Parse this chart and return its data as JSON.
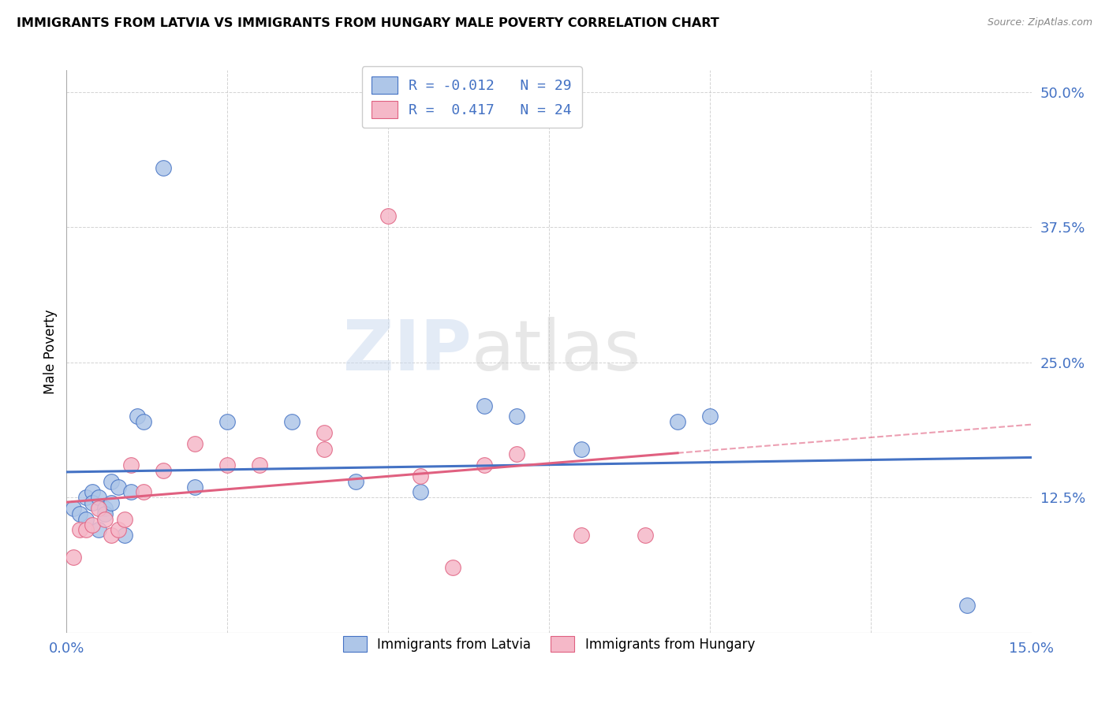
{
  "title": "IMMIGRANTS FROM LATVIA VS IMMIGRANTS FROM HUNGARY MALE POVERTY CORRELATION CHART",
  "source": "Source: ZipAtlas.com",
  "ylabel_label": "Male Poverty",
  "xlim": [
    0.0,
    0.15
  ],
  "ylim": [
    0.0,
    0.52
  ],
  "xticks": [
    0.0,
    0.025,
    0.05,
    0.075,
    0.1,
    0.125,
    0.15
  ],
  "xtick_labels": [
    "0.0%",
    "",
    "",
    "",
    "",
    "",
    "15.0%"
  ],
  "yticks": [
    0.0,
    0.125,
    0.25,
    0.375,
    0.5
  ],
  "ytick_labels": [
    "",
    "12.5%",
    "25.0%",
    "37.5%",
    "50.0%"
  ],
  "r_latvia": -0.012,
  "n_latvia": 29,
  "r_hungary": 0.417,
  "n_hungary": 24,
  "color_latvia": "#aec6e8",
  "color_hungary": "#f5b8c8",
  "line_color_latvia": "#4472c4",
  "line_color_hungary": "#e06080",
  "legend_label_latvia": "Immigrants from Latvia",
  "legend_label_hungary": "Immigrants from Hungary",
  "watermark_zip": "ZIP",
  "watermark_atlas": "atlas",
  "background_color": "#ffffff",
  "grid_color": "#c8c8c8",
  "latvia_x": [
    0.001,
    0.002,
    0.003,
    0.003,
    0.004,
    0.004,
    0.005,
    0.005,
    0.006,
    0.006,
    0.007,
    0.007,
    0.008,
    0.009,
    0.01,
    0.011,
    0.012,
    0.015,
    0.02,
    0.025,
    0.035,
    0.045,
    0.055,
    0.065,
    0.07,
    0.08,
    0.095,
    0.1,
    0.14
  ],
  "latvia_y": [
    0.115,
    0.11,
    0.125,
    0.105,
    0.13,
    0.12,
    0.125,
    0.095,
    0.115,
    0.11,
    0.14,
    0.12,
    0.135,
    0.09,
    0.13,
    0.2,
    0.195,
    0.43,
    0.135,
    0.195,
    0.195,
    0.14,
    0.13,
    0.21,
    0.2,
    0.17,
    0.195,
    0.2,
    0.025
  ],
  "hungary_x": [
    0.001,
    0.002,
    0.003,
    0.004,
    0.005,
    0.006,
    0.007,
    0.008,
    0.009,
    0.01,
    0.012,
    0.015,
    0.02,
    0.025,
    0.03,
    0.04,
    0.04,
    0.05,
    0.055,
    0.06,
    0.065,
    0.07,
    0.08,
    0.09
  ],
  "hungary_y": [
    0.07,
    0.095,
    0.095,
    0.1,
    0.115,
    0.105,
    0.09,
    0.095,
    0.105,
    0.155,
    0.13,
    0.15,
    0.175,
    0.155,
    0.155,
    0.185,
    0.17,
    0.385,
    0.145,
    0.06,
    0.155,
    0.165,
    0.09,
    0.09
  ],
  "marker_size": 200
}
